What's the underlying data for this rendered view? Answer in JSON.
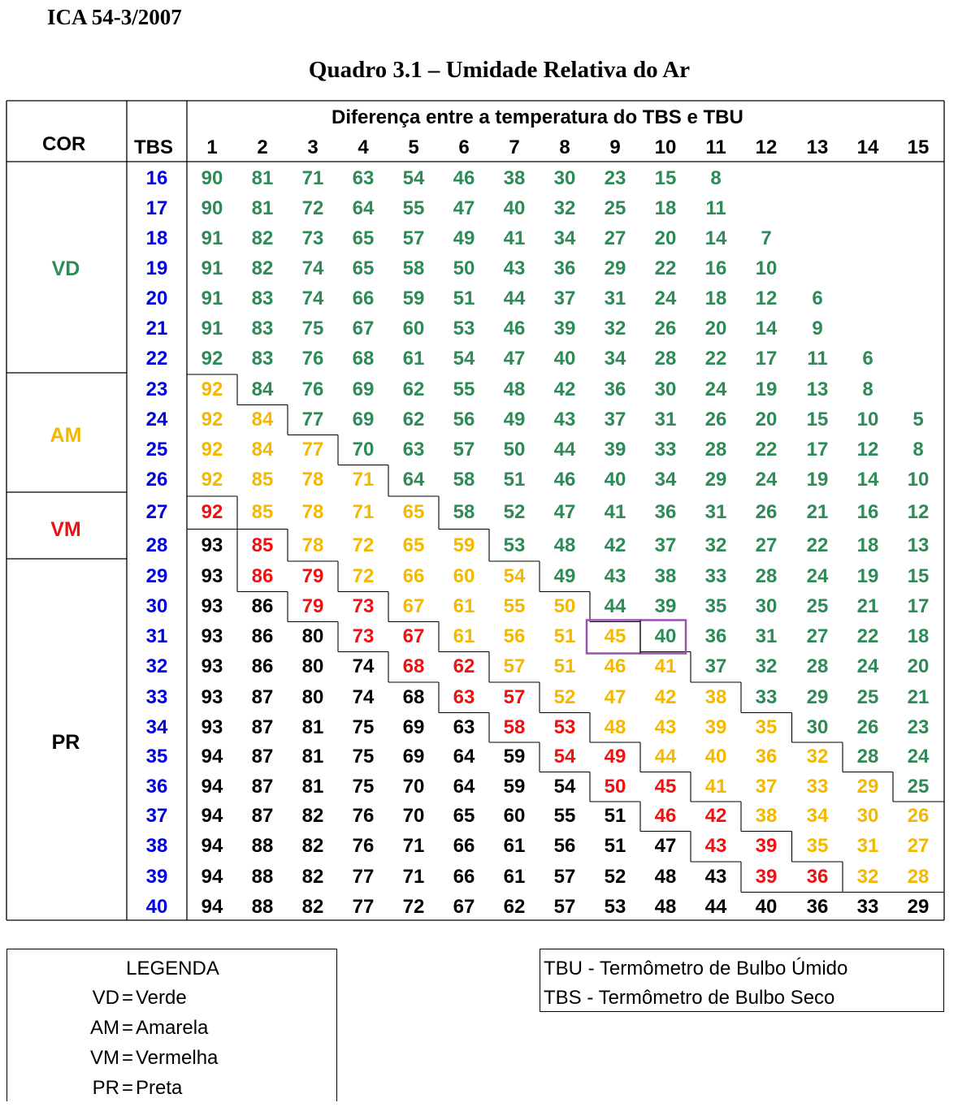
{
  "header": {
    "doc_ref": "ICA 54-3/2007",
    "title": "Quadro 3.1 – Umidade Relativa do Ar"
  },
  "table": {
    "col_cor": "COR",
    "col_tbs": "TBS",
    "diff_caption": "Diferença entre a temperatura do TBS e TBU",
    "diffs": [
      "1",
      "2",
      "3",
      "4",
      "5",
      "6",
      "7",
      "8",
      "9",
      "10",
      "11",
      "12",
      "13",
      "14",
      "15"
    ],
    "colors": {
      "VD": "#2e8b57",
      "AM": "#f5b800",
      "VM": "#ee1111",
      "PR": "#000000",
      "TBS": "#0000dd",
      "highlight": "#9b4fb0"
    },
    "groups": [
      {
        "code": "VD",
        "first_row": 0,
        "row_count": 7
      },
      {
        "code": "AM",
        "first_row": 7,
        "row_count": 4
      },
      {
        "code": "VM",
        "first_row": 11,
        "row_count": 2
      },
      {
        "code": "PR",
        "first_row": 13,
        "row_count": 12
      }
    ],
    "highlight": {
      "row_tbs": "31",
      "columns": [
        "9",
        "10"
      ]
    },
    "rows": [
      {
        "tbs": "16",
        "values": [
          "90",
          "81",
          "71",
          "63",
          "54",
          "46",
          "38",
          "30",
          "23",
          "15",
          "8"
        ],
        "color_codes": [
          "VD",
          "VD",
          "VD",
          "VD",
          "VD",
          "VD",
          "VD",
          "VD",
          "VD",
          "VD",
          "VD"
        ]
      },
      {
        "tbs": "17",
        "values": [
          "90",
          "81",
          "72",
          "64",
          "55",
          "47",
          "40",
          "32",
          "25",
          "18",
          "11"
        ],
        "color_codes": [
          "VD",
          "VD",
          "VD",
          "VD",
          "VD",
          "VD",
          "VD",
          "VD",
          "VD",
          "VD",
          "VD"
        ]
      },
      {
        "tbs": "18",
        "values": [
          "91",
          "82",
          "73",
          "65",
          "57",
          "49",
          "41",
          "34",
          "27",
          "20",
          "14",
          "7"
        ],
        "color_codes": [
          "VD",
          "VD",
          "VD",
          "VD",
          "VD",
          "VD",
          "VD",
          "VD",
          "VD",
          "VD",
          "VD",
          "VD"
        ]
      },
      {
        "tbs": "19",
        "values": [
          "91",
          "82",
          "74",
          "65",
          "58",
          "50",
          "43",
          "36",
          "29",
          "22",
          "16",
          "10"
        ],
        "color_codes": [
          "VD",
          "VD",
          "VD",
          "VD",
          "VD",
          "VD",
          "VD",
          "VD",
          "VD",
          "VD",
          "VD",
          "VD"
        ]
      },
      {
        "tbs": "20",
        "values": [
          "91",
          "83",
          "74",
          "66",
          "59",
          "51",
          "44",
          "37",
          "31",
          "24",
          "18",
          "12",
          "6"
        ],
        "color_codes": [
          "VD",
          "VD",
          "VD",
          "VD",
          "VD",
          "VD",
          "VD",
          "VD",
          "VD",
          "VD",
          "VD",
          "VD",
          "VD"
        ]
      },
      {
        "tbs": "21",
        "values": [
          "91",
          "83",
          "75",
          "67",
          "60",
          "53",
          "46",
          "39",
          "32",
          "26",
          "20",
          "14",
          "9"
        ],
        "color_codes": [
          "VD",
          "VD",
          "VD",
          "VD",
          "VD",
          "VD",
          "VD",
          "VD",
          "VD",
          "VD",
          "VD",
          "VD",
          "VD"
        ]
      },
      {
        "tbs": "22",
        "values": [
          "92",
          "83",
          "76",
          "68",
          "61",
          "54",
          "47",
          "40",
          "34",
          "28",
          "22",
          "17",
          "11",
          "6"
        ],
        "color_codes": [
          "VD",
          "VD",
          "VD",
          "VD",
          "VD",
          "VD",
          "VD",
          "VD",
          "VD",
          "VD",
          "VD",
          "VD",
          "VD",
          "VD"
        ]
      },
      {
        "tbs": "23",
        "values": [
          "92",
          "84",
          "76",
          "69",
          "62",
          "55",
          "48",
          "42",
          "36",
          "30",
          "24",
          "19",
          "13",
          "8"
        ],
        "color_codes": [
          "AM",
          "VD",
          "VD",
          "VD",
          "VD",
          "VD",
          "VD",
          "VD",
          "VD",
          "VD",
          "VD",
          "VD",
          "VD",
          "VD"
        ]
      },
      {
        "tbs": "24",
        "values": [
          "92",
          "84",
          "77",
          "69",
          "62",
          "56",
          "49",
          "43",
          "37",
          "31",
          "26",
          "20",
          "15",
          "10",
          "5"
        ],
        "color_codes": [
          "AM",
          "AM",
          "VD",
          "VD",
          "VD",
          "VD",
          "VD",
          "VD",
          "VD",
          "VD",
          "VD",
          "VD",
          "VD",
          "VD",
          "VD"
        ]
      },
      {
        "tbs": "25",
        "values": [
          "92",
          "84",
          "77",
          "70",
          "63",
          "57",
          "50",
          "44",
          "39",
          "33",
          "28",
          "22",
          "17",
          "12",
          "8"
        ],
        "color_codes": [
          "AM",
          "AM",
          "AM",
          "VD",
          "VD",
          "VD",
          "VD",
          "VD",
          "VD",
          "VD",
          "VD",
          "VD",
          "VD",
          "VD",
          "VD"
        ]
      },
      {
        "tbs": "26",
        "values": [
          "92",
          "85",
          "78",
          "71",
          "64",
          "58",
          "51",
          "46",
          "40",
          "34",
          "29",
          "24",
          "19",
          "14",
          "10"
        ],
        "color_codes": [
          "AM",
          "AM",
          "AM",
          "AM",
          "VD",
          "VD",
          "VD",
          "VD",
          "VD",
          "VD",
          "VD",
          "VD",
          "VD",
          "VD",
          "VD"
        ]
      },
      {
        "tbs": "27",
        "values": [
          "92",
          "85",
          "78",
          "71",
          "65",
          "58",
          "52",
          "47",
          "41",
          "36",
          "31",
          "26",
          "21",
          "16",
          "12"
        ],
        "color_codes": [
          "VM",
          "AM",
          "AM",
          "AM",
          "AM",
          "VD",
          "VD",
          "VD",
          "VD",
          "VD",
          "VD",
          "VD",
          "VD",
          "VD",
          "VD"
        ]
      },
      {
        "tbs": "28",
        "values": [
          "93",
          "85",
          "78",
          "72",
          "65",
          "59",
          "53",
          "48",
          "42",
          "37",
          "32",
          "27",
          "22",
          "18",
          "13"
        ],
        "color_codes": [
          "PR",
          "VM",
          "AM",
          "AM",
          "AM",
          "AM",
          "VD",
          "VD",
          "VD",
          "VD",
          "VD",
          "VD",
          "VD",
          "VD",
          "VD"
        ]
      },
      {
        "tbs": "29",
        "values": [
          "93",
          "86",
          "79",
          "72",
          "66",
          "60",
          "54",
          "49",
          "43",
          "38",
          "33",
          "28",
          "24",
          "19",
          "15"
        ],
        "color_codes": [
          "PR",
          "VM",
          "VM",
          "AM",
          "AM",
          "AM",
          "AM",
          "VD",
          "VD",
          "VD",
          "VD",
          "VD",
          "VD",
          "VD",
          "VD"
        ]
      },
      {
        "tbs": "30",
        "values": [
          "93",
          "86",
          "79",
          "73",
          "67",
          "61",
          "55",
          "50",
          "44",
          "39",
          "35",
          "30",
          "25",
          "21",
          "17"
        ],
        "color_codes": [
          "PR",
          "PR",
          "VM",
          "VM",
          "AM",
          "AM",
          "AM",
          "AM",
          "VD",
          "VD",
          "VD",
          "VD",
          "VD",
          "VD",
          "VD"
        ]
      },
      {
        "tbs": "31",
        "values": [
          "93",
          "86",
          "80",
          "73",
          "67",
          "61",
          "56",
          "51",
          "45",
          "40",
          "36",
          "31",
          "27",
          "22",
          "18"
        ],
        "color_codes": [
          "PR",
          "PR",
          "PR",
          "VM",
          "VM",
          "AM",
          "AM",
          "AM",
          "AM",
          "VD",
          "VD",
          "VD",
          "VD",
          "VD",
          "VD"
        ]
      },
      {
        "tbs": "32",
        "values": [
          "93",
          "86",
          "80",
          "74",
          "68",
          "62",
          "57",
          "51",
          "46",
          "41",
          "37",
          "32",
          "28",
          "24",
          "20"
        ],
        "color_codes": [
          "PR",
          "PR",
          "PR",
          "PR",
          "VM",
          "VM",
          "AM",
          "AM",
          "AM",
          "AM",
          "VD",
          "VD",
          "VD",
          "VD",
          "VD"
        ]
      },
      {
        "tbs": "33",
        "values": [
          "93",
          "87",
          "80",
          "74",
          "68",
          "63",
          "57",
          "52",
          "47",
          "42",
          "38",
          "33",
          "29",
          "25",
          "21"
        ],
        "color_codes": [
          "PR",
          "PR",
          "PR",
          "PR",
          "PR",
          "VM",
          "VM",
          "AM",
          "AM",
          "AM",
          "AM",
          "VD",
          "VD",
          "VD",
          "VD"
        ]
      },
      {
        "tbs": "34",
        "values": [
          "93",
          "87",
          "81",
          "75",
          "69",
          "63",
          "58",
          "53",
          "48",
          "43",
          "39",
          "35",
          "30",
          "26",
          "23"
        ],
        "color_codes": [
          "PR",
          "PR",
          "PR",
          "PR",
          "PR",
          "PR",
          "VM",
          "VM",
          "AM",
          "AM",
          "AM",
          "AM",
          "VD",
          "VD",
          "VD"
        ]
      },
      {
        "tbs": "35",
        "values": [
          "94",
          "87",
          "81",
          "75",
          "69",
          "64",
          "59",
          "54",
          "49",
          "44",
          "40",
          "36",
          "32",
          "28",
          "24"
        ],
        "color_codes": [
          "PR",
          "PR",
          "PR",
          "PR",
          "PR",
          "PR",
          "PR",
          "VM",
          "VM",
          "AM",
          "AM",
          "AM",
          "AM",
          "VD",
          "VD"
        ]
      },
      {
        "tbs": "36",
        "values": [
          "94",
          "87",
          "81",
          "75",
          "70",
          "64",
          "59",
          "54",
          "50",
          "45",
          "41",
          "37",
          "33",
          "29",
          "25"
        ],
        "color_codes": [
          "PR",
          "PR",
          "PR",
          "PR",
          "PR",
          "PR",
          "PR",
          "PR",
          "VM",
          "VM",
          "AM",
          "AM",
          "AM",
          "AM",
          "VD"
        ]
      },
      {
        "tbs": "37",
        "values": [
          "94",
          "87",
          "82",
          "76",
          "70",
          "65",
          "60",
          "55",
          "51",
          "46",
          "42",
          "38",
          "34",
          "30",
          "26"
        ],
        "color_codes": [
          "PR",
          "PR",
          "PR",
          "PR",
          "PR",
          "PR",
          "PR",
          "PR",
          "PR",
          "VM",
          "VM",
          "AM",
          "AM",
          "AM",
          "AM"
        ]
      },
      {
        "tbs": "38",
        "values": [
          "94",
          "88",
          "82",
          "76",
          "71",
          "66",
          "61",
          "56",
          "51",
          "47",
          "43",
          "39",
          "35",
          "31",
          "27"
        ],
        "color_codes": [
          "PR",
          "PR",
          "PR",
          "PR",
          "PR",
          "PR",
          "PR",
          "PR",
          "PR",
          "PR",
          "VM",
          "VM",
          "AM",
          "AM",
          "AM"
        ]
      },
      {
        "tbs": "39",
        "values": [
          "94",
          "88",
          "82",
          "77",
          "71",
          "66",
          "61",
          "57",
          "52",
          "48",
          "43",
          "39",
          "36",
          "32",
          "28"
        ],
        "color_codes": [
          "PR",
          "PR",
          "PR",
          "PR",
          "PR",
          "PR",
          "PR",
          "PR",
          "PR",
          "PR",
          "PR",
          "VM",
          "VM",
          "AM",
          "AM"
        ]
      },
      {
        "tbs": "40",
        "values": [
          "94",
          "88",
          "82",
          "77",
          "72",
          "67",
          "62",
          "57",
          "53",
          "48",
          "44",
          "40",
          "36",
          "33",
          "29"
        ],
        "color_codes": [
          "PR",
          "PR",
          "PR",
          "PR",
          "PR",
          "PR",
          "PR",
          "PR",
          "PR",
          "PR",
          "PR",
          "PR",
          "PR",
          "PR",
          "PR"
        ]
      }
    ]
  },
  "legend": {
    "title": "LEGENDA",
    "items": [
      {
        "code": "VD",
        "eq": "=",
        "label": "Verde"
      },
      {
        "code": "AM",
        "eq": "=",
        "label": "Amarela"
      },
      {
        "code": "VM",
        "eq": "=",
        "label": "Vermelha"
      },
      {
        "code": "PR",
        "eq": "=",
        "label": "Preta"
      }
    ]
  },
  "abbreviations": [
    "TBU - Termômetro de Bulbo Úmido",
    "TBS - Termômetro de Bulbo Seco"
  ]
}
